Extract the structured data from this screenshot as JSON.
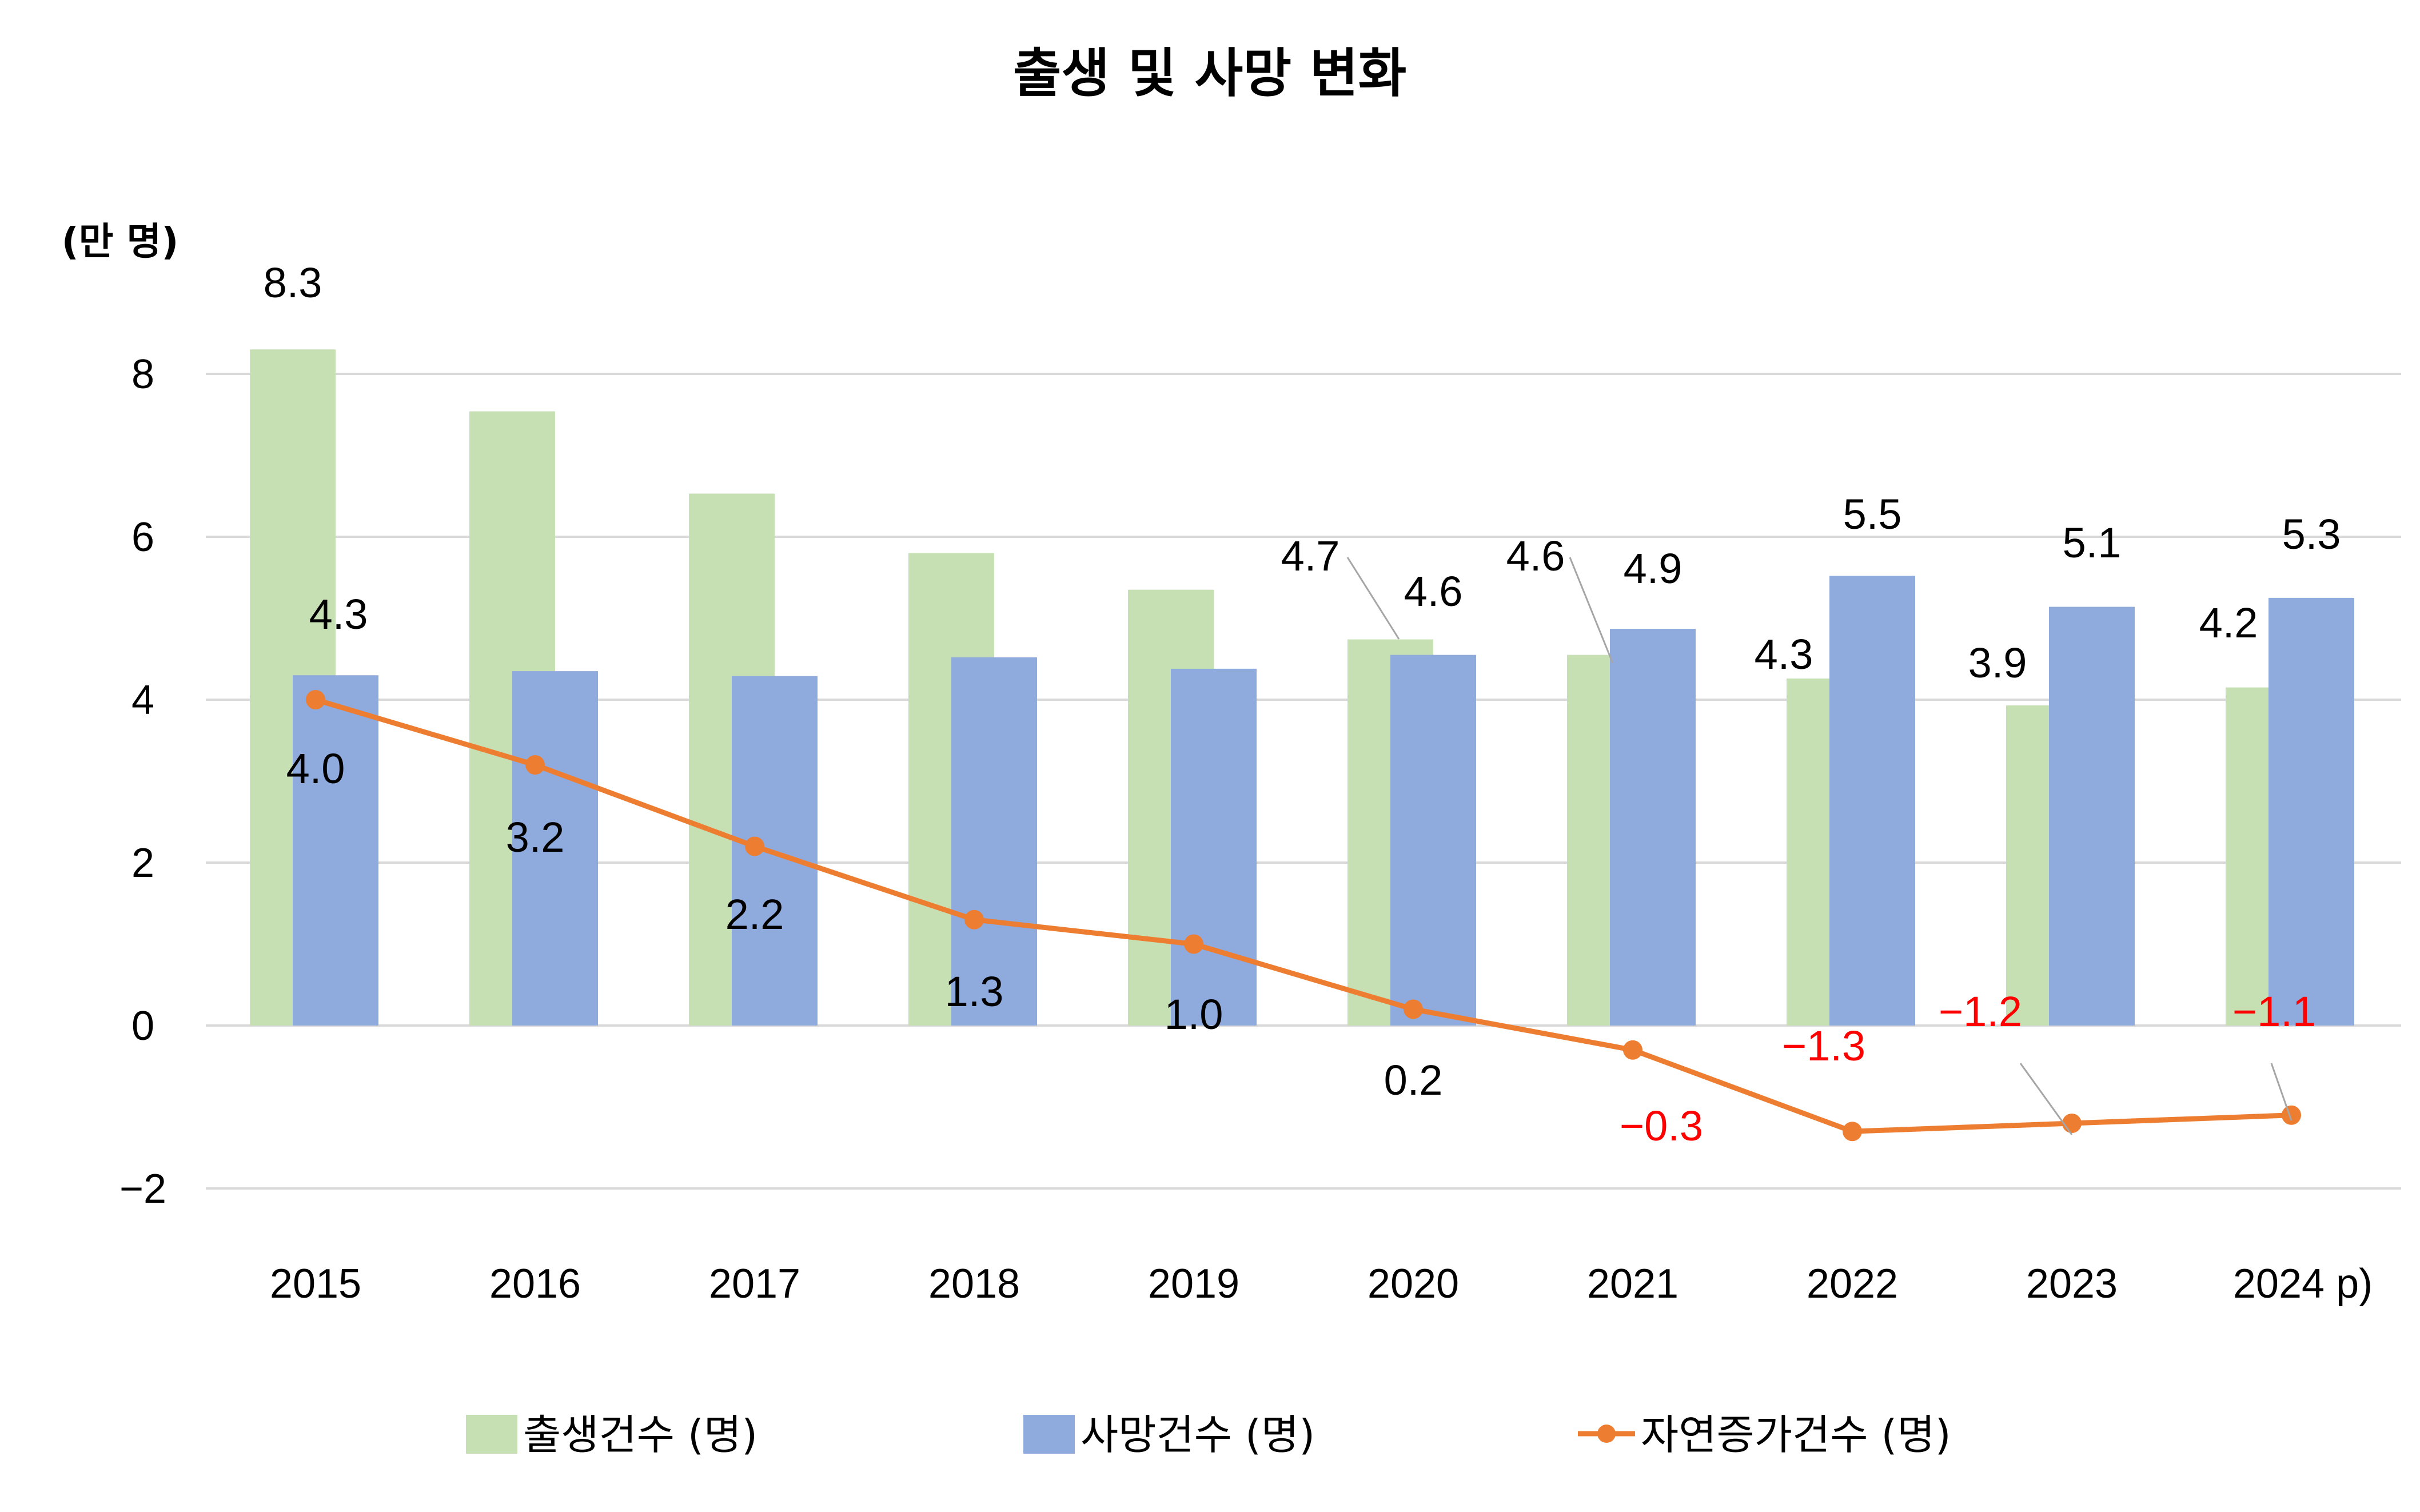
{
  "chart_data": {
    "type": "bar",
    "title": "출생 및 사망 변화",
    "ylabel": "(만 명)",
    "xlabel": "",
    "ylim": [
      -2,
      8
    ],
    "yticks": [
      -2,
      0,
      2,
      4,
      6,
      8
    ],
    "ytick_labels": [
      "−2",
      "0",
      "2",
      "4",
      "6",
      "8"
    ],
    "grid": true,
    "legend_position": "bottom",
    "categories": [
      "2015",
      "2016",
      "2017",
      "2018",
      "2019",
      "2020",
      "2021",
      "2022",
      "2023",
      "2024 p)"
    ],
    "series": [
      {
        "name": "출생건수 (명)",
        "kind": "bar",
        "color": "#c6e0b4",
        "values": [
          8.3,
          7.54,
          6.53,
          5.8,
          5.35,
          4.74,
          4.55,
          4.26,
          3.93,
          4.15
        ],
        "labels": [
          "8.3",
          "",
          "",
          "",
          "",
          "4.7",
          "4.6",
          "4.3",
          "3.9",
          "4.2"
        ]
      },
      {
        "name": "사망건수 (명)",
        "kind": "bar",
        "color": "#8faadc",
        "values": [
          4.3,
          4.35,
          4.29,
          4.52,
          4.38,
          4.55,
          4.87,
          5.52,
          5.14,
          5.25
        ],
        "labels": [
          "4.3",
          "",
          "",
          "",
          "",
          "4.6",
          "4.9",
          "5.5",
          "5.1",
          "5.3"
        ]
      },
      {
        "name": "자연증가건수 (명)",
        "kind": "line",
        "color": "#ed7d31",
        "values": [
          4.0,
          3.2,
          2.2,
          1.3,
          1.0,
          0.2,
          -0.3,
          -1.3,
          -1.2,
          -1.1
        ],
        "labels": [
          "4.0",
          "3.2",
          "2.2",
          "1.3",
          "1.0",
          "0.2",
          "−0.3",
          "−1.3",
          "−1.2",
          "−1.1"
        ],
        "negative_label_color": "#ff0000"
      }
    ]
  }
}
